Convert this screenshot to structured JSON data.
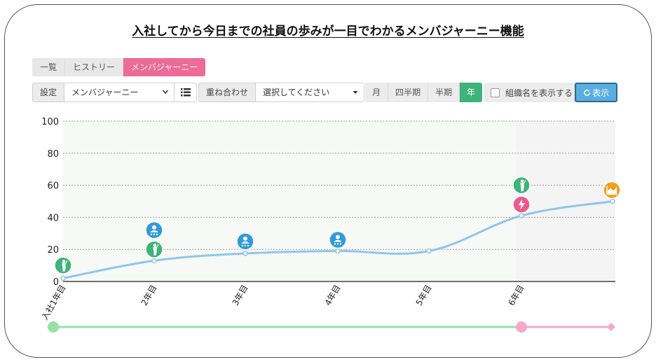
{
  "page": {
    "title": "入社してから今日までの社員の歩みが一目でわかるメンバジャーニー機能"
  },
  "tabs": [
    {
      "label": "一覧",
      "active": false
    },
    {
      "label": "ヒストリー",
      "active": false
    },
    {
      "label": "メンバジャーニー",
      "active": true
    }
  ],
  "toolbar": {
    "setting_label": "設定",
    "setting_value": "メンバジャーニー",
    "list_icon": "list-icon",
    "overlay_label": "重ね合わせ",
    "overlay_placeholder": "選択してください",
    "periods": [
      {
        "label": "月",
        "active": false
      },
      {
        "label": "四半期",
        "active": false
      },
      {
        "label": "半期",
        "active": false
      },
      {
        "label": "年",
        "active": true
      }
    ],
    "show_org_label": "組織名を表示する",
    "show_org_checked": false,
    "show_button_label": "表示",
    "show_button_icon": "refresh-icon"
  },
  "colors": {
    "active_tab": "#ec6b97",
    "active_period": "#3eb37a",
    "show_button": "#5aaee0",
    "line": "#8ec6ea",
    "timeline_green": "#98e0a8",
    "timeline_pink": "#f5a9c9",
    "icon_green": "#3eb37a",
    "icon_blue": "#2f9bd8",
    "icon_pink": "#ec5a8c",
    "icon_orange": "#f0a020"
  },
  "chart_data": {
    "type": "line",
    "categories": [
      "入社1年目",
      "2年目",
      "3年目",
      "4年目",
      "5年目",
      "6年目",
      ""
    ],
    "values": [
      2,
      13,
      17.5,
      19,
      19,
      41,
      50
    ],
    "ylim": [
      0,
      100
    ],
    "yticks": [
      0,
      20,
      40,
      60,
      80,
      100
    ],
    "grid": true,
    "legend": "none",
    "events": [
      {
        "category_index": 0,
        "value": 10,
        "icon": "person-standing-icon",
        "color": "#3eb37a"
      },
      {
        "category_index": 1,
        "value": 20,
        "icon": "person-standing-icon",
        "color": "#3eb37a"
      },
      {
        "category_index": 1,
        "value": 32,
        "icon": "team-award-icon",
        "color": "#2f9bd8"
      },
      {
        "category_index": 2,
        "value": 25,
        "icon": "team-award-icon",
        "color": "#2f9bd8"
      },
      {
        "category_index": 3,
        "value": 26,
        "icon": "team-award-icon",
        "color": "#2f9bd8"
      },
      {
        "category_index": 5,
        "value": 48,
        "icon": "lightning-person-icon",
        "color": "#ec5a8c"
      },
      {
        "category_index": 5,
        "value": 60,
        "icon": "person-standing-icon",
        "color": "#3eb37a"
      },
      {
        "category_index": 6,
        "value": 57,
        "icon": "chart-badge-icon",
        "color": "#f0a020"
      }
    ],
    "timeline": [
      {
        "from": 0,
        "to": 5,
        "color": "#98e0a8",
        "start_marker": "circle"
      },
      {
        "from": 5,
        "to": 6,
        "color": "#f5a9c9",
        "start_marker": "circle",
        "end_marker": "diamond"
      }
    ]
  }
}
